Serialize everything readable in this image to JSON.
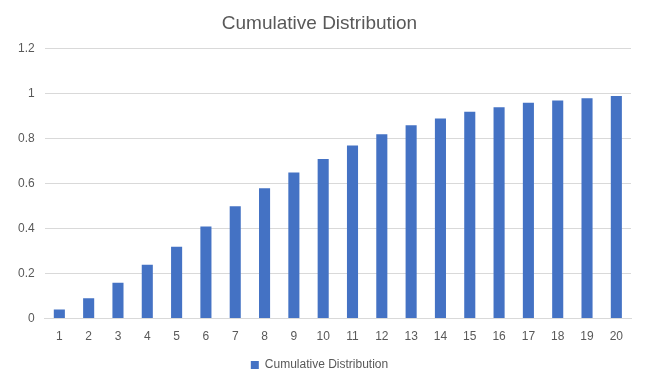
{
  "chart_data": {
    "type": "bar",
    "title": "Cumulative Distribution",
    "categories": [
      "1",
      "2",
      "3",
      "4",
      "5",
      "6",
      "7",
      "8",
      "9",
      "10",
      "11",
      "12",
      "13",
      "14",
      "15",
      "16",
      "17",
      "18",
      "19",
      "20"
    ],
    "series": [
      {
        "name": "Cumulative Distribution",
        "color": "#4472c4",
        "values": [
          0.04,
          0.09,
          0.16,
          0.24,
          0.32,
          0.41,
          0.5,
          0.58,
          0.65,
          0.71,
          0.77,
          0.82,
          0.86,
          0.89,
          0.92,
          0.94,
          0.96,
          0.97,
          0.98,
          0.99
        ]
      }
    ],
    "ylim": [
      0,
      1.2
    ],
    "yticks": [
      0,
      0.2,
      0.4,
      0.6,
      0.8,
      1,
      1.2
    ],
    "grid": true,
    "legend": "bottom"
  }
}
